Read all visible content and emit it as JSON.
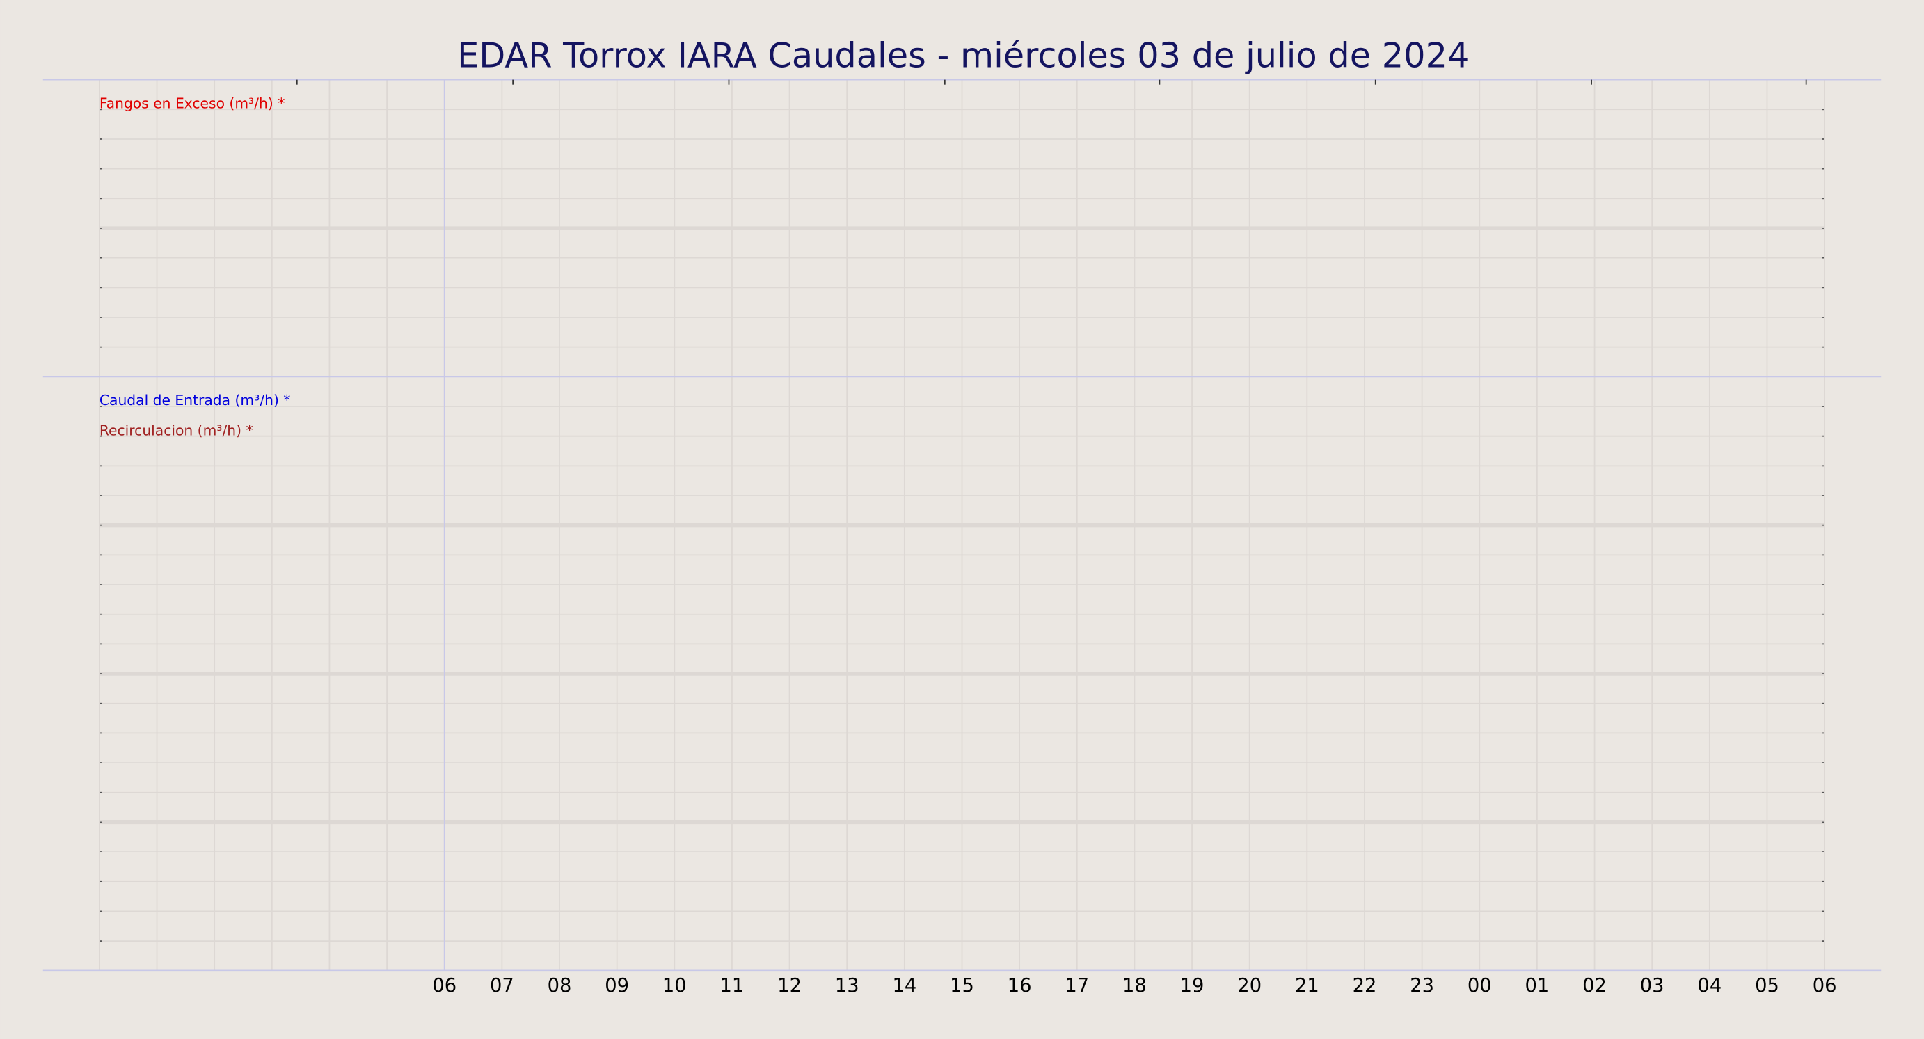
{
  "chart_data": [
    {
      "type": "line",
      "title": "EDAR Torrox IARA Caudales   -   miércoles 03 de julio de 2024",
      "categories": [
        null,
        null,
        null,
        null,
        null,
        null,
        "06",
        "07",
        "08",
        "09",
        "10",
        "11",
        "12",
        "13",
        "14",
        "15",
        "16",
        "17",
        "18",
        "19",
        "20",
        "21",
        "22",
        "23",
        "00",
        "01",
        "02",
        "03",
        "04",
        "05",
        "06"
      ],
      "series": [
        {
          "name": "Fangos en Exceso (m³/h) *",
          "color": "#e00000",
          "values": [
            null,
            null,
            null,
            null,
            null,
            null,
            null,
            null,
            null,
            null,
            null,
            null,
            null,
            null,
            null,
            null,
            null,
            null,
            null,
            null,
            null,
            null,
            null,
            null,
            null,
            null,
            null,
            null,
            null,
            null,
            null
          ]
        }
      ],
      "grid": true
    },
    {
      "type": "line",
      "categories": [
        null,
        null,
        null,
        null,
        null,
        null,
        "06",
        "07",
        "08",
        "09",
        "10",
        "11",
        "12",
        "13",
        "14",
        "15",
        "16",
        "17",
        "18",
        "19",
        "20",
        "21",
        "22",
        "23",
        "00",
        "01",
        "02",
        "03",
        "04",
        "05",
        "06"
      ],
      "series": [
        {
          "name": "Caudal de Entrada (m³/h) *",
          "color": "#0000dd",
          "values": [
            null,
            null,
            null,
            null,
            null,
            null,
            null,
            null,
            null,
            null,
            null,
            null,
            null,
            null,
            null,
            null,
            null,
            null,
            null,
            null,
            null,
            null,
            null,
            null,
            null,
            null,
            null,
            null,
            null,
            null,
            null
          ]
        },
        {
          "name": "Recirculacion (m³/h) *",
          "color": "#a02020",
          "values": [
            null,
            null,
            null,
            null,
            null,
            null,
            null,
            null,
            null,
            null,
            null,
            null,
            null,
            null,
            null,
            null,
            null,
            null,
            null,
            null,
            null,
            null,
            null,
            null,
            null,
            null,
            null,
            null,
            null,
            null,
            null
          ]
        }
      ],
      "grid": true
    }
  ]
}
